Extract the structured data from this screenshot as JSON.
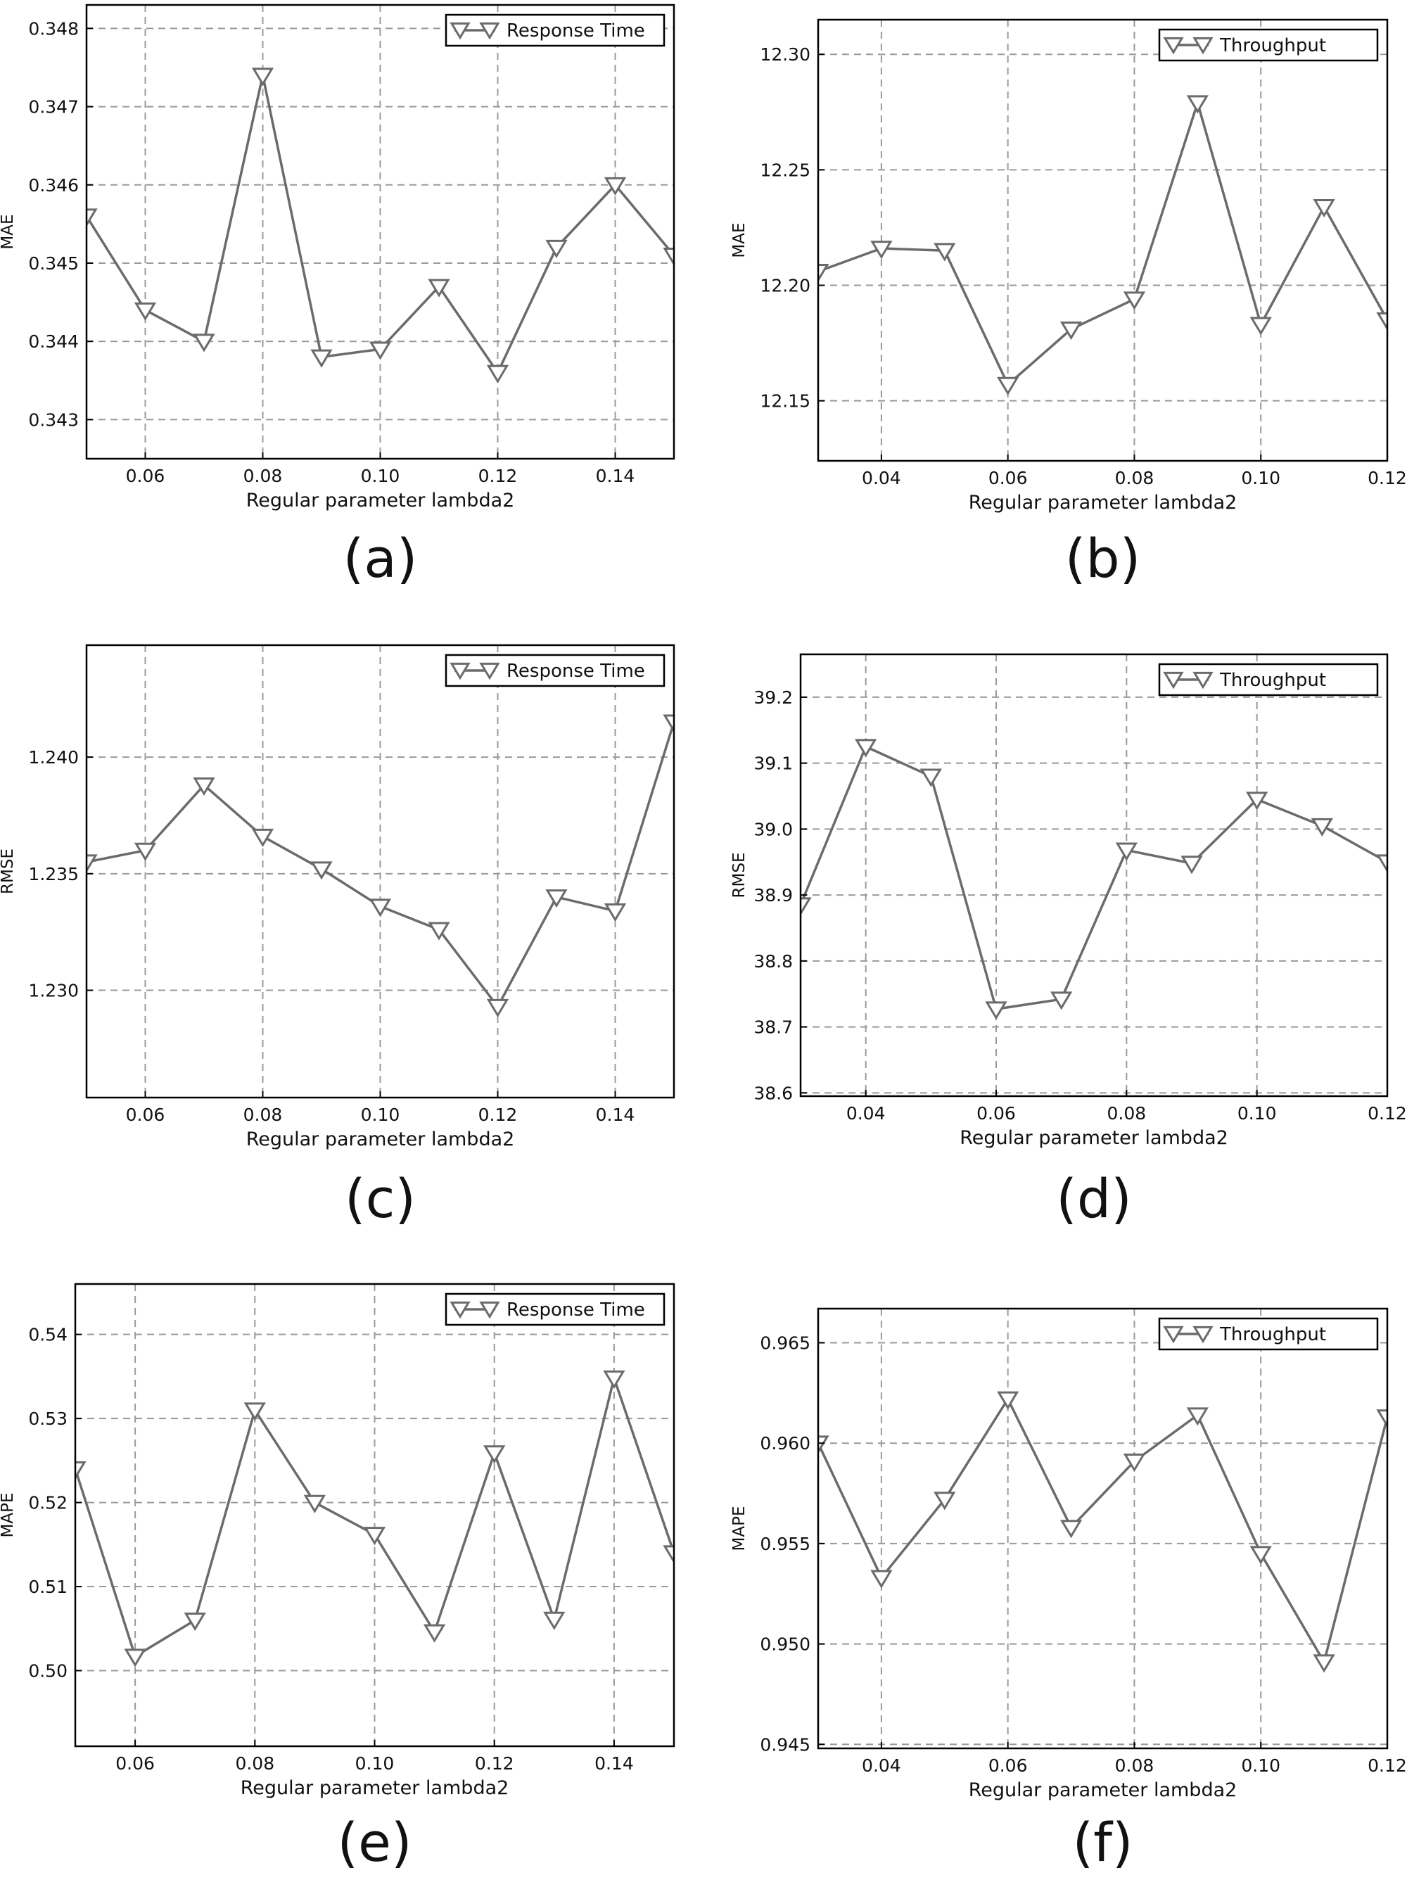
{
  "style": {
    "line_color": "#6b6b6b",
    "grid_color": "#9a9a9a",
    "frame_color": "#000000"
  },
  "chart_data": [
    {
      "type": "line",
      "label": "(a)",
      "xlabel": "Regular parameter lambda2",
      "ylabel": "MAE",
      "xlim": [
        0.05,
        0.15
      ],
      "ylim": [
        0.3425,
        0.3483
      ],
      "xticks": [
        0.06,
        0.08,
        0.1,
        0.12,
        0.14
      ],
      "xtick_labels": [
        "0.06",
        "0.08",
        "0.10",
        "0.12",
        "0.14"
      ],
      "yticks": [
        0.343,
        0.344,
        0.345,
        0.346,
        0.347,
        0.348
      ],
      "ytick_labels": [
        "0.343",
        "0.344",
        "0.345",
        "0.346",
        "0.347",
        "0.348"
      ],
      "grid": true,
      "legend_position": "top-right",
      "series": [
        {
          "name": "Response Time",
          "x": [
            0.05,
            0.06,
            0.07,
            0.08,
            0.09,
            0.1,
            0.11,
            0.12,
            0.13,
            0.14,
            0.15
          ],
          "y": [
            0.3456,
            0.3444,
            0.344,
            0.3474,
            0.3438,
            0.3439,
            0.3447,
            0.3436,
            0.3452,
            0.346,
            0.3451
          ]
        }
      ]
    },
    {
      "type": "line",
      "label": "(b)",
      "xlabel": "Regular parameter lambda2",
      "ylabel": "MAE",
      "xlim": [
        0.03,
        0.12
      ],
      "ylim": [
        12.124,
        12.315
      ],
      "xticks": [
        0.04,
        0.06,
        0.08,
        0.1,
        0.12
      ],
      "xtick_labels": [
        "0.04",
        "0.06",
        "0.08",
        "0.10",
        "0.12"
      ],
      "yticks": [
        12.15,
        12.2,
        12.25,
        12.3
      ],
      "ytick_labels": [
        "12.15",
        "12.20",
        "12.25",
        "12.30"
      ],
      "grid": true,
      "legend_position": "top-right",
      "series": [
        {
          "name": "Throughput",
          "x": [
            0.03,
            0.04,
            0.05,
            0.06,
            0.07,
            0.08,
            0.09,
            0.1,
            0.11,
            0.12
          ],
          "y": [
            12.206,
            12.216,
            12.215,
            12.157,
            12.181,
            12.194,
            12.279,
            12.183,
            12.234,
            12.185
          ]
        }
      ]
    },
    {
      "type": "line",
      "label": "(c)",
      "xlabel": "Regular parameter lambda2",
      "ylabel": "RMSE",
      "xlim": [
        0.05,
        0.15
      ],
      "ylim": [
        1.2254,
        1.2448
      ],
      "xticks": [
        0.06,
        0.08,
        0.1,
        0.12,
        0.14
      ],
      "xtick_labels": [
        "0.06",
        "0.08",
        "0.10",
        "0.12",
        "0.14"
      ],
      "yticks": [
        1.23,
        1.235,
        1.24
      ],
      "ytick_labels": [
        "1.230",
        "1.235",
        "1.240"
      ],
      "grid": true,
      "legend_position": "top-right",
      "series": [
        {
          "name": "Response Time",
          "x": [
            0.05,
            0.06,
            0.07,
            0.08,
            0.09,
            0.1,
            0.11,
            0.12,
            0.13,
            0.14,
            0.15
          ],
          "y": [
            1.2355,
            1.236,
            1.2388,
            1.2366,
            1.2352,
            1.2336,
            1.2326,
            1.2293,
            1.234,
            1.2334,
            1.2415
          ]
        }
      ]
    },
    {
      "type": "line",
      "label": "(d)",
      "xlabel": "Regular parameter lambda2",
      "ylabel": "RMSE",
      "xlim": [
        0.03,
        0.12
      ],
      "ylim": [
        38.595,
        39.265
      ],
      "xticks": [
        0.04,
        0.06,
        0.08,
        0.1,
        0.12
      ],
      "xtick_labels": [
        "0.04",
        "0.06",
        "0.08",
        "0.10",
        "0.12"
      ],
      "yticks": [
        38.6,
        38.7,
        38.8,
        38.9,
        39.0,
        39.1,
        39.2
      ],
      "ytick_labels": [
        "38.6",
        "38.7",
        "38.8",
        "38.9",
        "39.0",
        "39.1",
        "39.2"
      ],
      "grid": true,
      "legend_position": "top-right",
      "series": [
        {
          "name": "Throughput",
          "x": [
            0.03,
            0.04,
            0.05,
            0.06,
            0.07,
            0.08,
            0.09,
            0.1,
            0.11,
            0.12
          ],
          "y": [
            38.885,
            39.125,
            39.08,
            38.727,
            38.742,
            38.968,
            38.948,
            39.045,
            39.005,
            38.95
          ]
        }
      ]
    },
    {
      "type": "line",
      "label": "(e)",
      "xlabel": "Regular parameter lambda2",
      "ylabel": "MAPE",
      "xlim": [
        0.05,
        0.15
      ],
      "ylim": [
        0.491,
        0.546
      ],
      "xticks": [
        0.06,
        0.08,
        0.1,
        0.12,
        0.14
      ],
      "xtick_labels": [
        "0.06",
        "0.08",
        "0.10",
        "0.12",
        "0.14"
      ],
      "yticks": [
        0.5,
        0.51,
        0.52,
        0.53,
        0.54
      ],
      "ytick_labels": [
        "0.50",
        "0.51",
        "0.52",
        "0.53",
        "0.54"
      ],
      "grid": true,
      "legend_position": "top-right",
      "series": [
        {
          "name": "Response Time",
          "x": [
            0.05,
            0.06,
            0.07,
            0.08,
            0.09,
            0.1,
            0.11,
            0.12,
            0.13,
            0.14,
            0.15
          ],
          "y": [
            0.524,
            0.5017,
            0.506,
            0.531,
            0.52,
            0.5162,
            0.5046,
            0.5259,
            0.5061,
            0.5348,
            0.514
          ]
        }
      ]
    },
    {
      "type": "line",
      "label": "(f)",
      "xlabel": "Regular parameter lambda2",
      "ylabel": "MAPE",
      "xlim": [
        0.03,
        0.12
      ],
      "ylim": [
        0.9448,
        0.9667
      ],
      "xticks": [
        0.04,
        0.06,
        0.08,
        0.1,
        0.12
      ],
      "xtick_labels": [
        "0.04",
        "0.06",
        "0.08",
        "0.10",
        "0.12"
      ],
      "yticks": [
        0.945,
        0.95,
        0.955,
        0.96,
        0.965
      ],
      "ytick_labels": [
        "0.945",
        "0.950",
        "0.955",
        "0.960",
        "0.965"
      ],
      "grid": true,
      "legend_position": "top-right",
      "series": [
        {
          "name": "Throughput",
          "x": [
            0.03,
            0.04,
            0.05,
            0.06,
            0.07,
            0.08,
            0.09,
            0.1,
            0.11,
            0.12
          ],
          "y": [
            0.96,
            0.9533,
            0.9572,
            0.9622,
            0.9558,
            0.9591,
            0.9614,
            0.9545,
            0.9491,
            0.9613
          ]
        }
      ]
    }
  ]
}
